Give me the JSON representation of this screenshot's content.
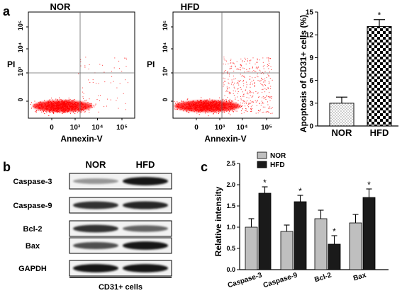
{
  "panels": {
    "a": "a",
    "b": "b",
    "c": "c"
  },
  "flow": {
    "left_title": "NOR",
    "right_title": "HFD",
    "ylabel": "PI",
    "xlabel": "Annexin-V",
    "y_ticks": [
      "10⁵",
      "10⁴",
      "10³",
      "0"
    ],
    "x_ticks": [
      "0",
      "10³",
      "10⁴",
      "10⁵"
    ]
  },
  "blot": {
    "groups": [
      "NOR",
      "HFD"
    ],
    "rows": [
      "Caspase-3",
      "Caspase-9",
      "Bcl-2",
      "Bax",
      "GAPDH"
    ],
    "intensity": [
      [
        0.3,
        0.95
      ],
      [
        0.8,
        0.85
      ],
      [
        0.8,
        0.55
      ],
      [
        0.65,
        0.95
      ],
      [
        0.95,
        0.95
      ]
    ],
    "caption": "CD31+ cells"
  },
  "chart_data": [
    {
      "type": "bar",
      "ylabel": "Apoptosis of CD31+ cells (%)",
      "categories": [
        "NOR",
        "HFD"
      ],
      "values": [
        3.0,
        13.1
      ],
      "errors": [
        0.8,
        0.9
      ],
      "ylim": [
        0,
        15
      ],
      "yticks": [
        "0",
        "3",
        "6",
        "9",
        "12",
        "15"
      ],
      "significance": [
        "",
        "*"
      ],
      "fills": [
        "dotted",
        "checkered"
      ]
    },
    {
      "type": "bar",
      "ylabel": "Relative intensity",
      "categories": [
        "Caspase-3",
        "Caspase-9",
        "Bcl-2",
        "Bax"
      ],
      "series": [
        {
          "name": "NOR",
          "color": "#bfbfbf",
          "values": [
            1.0,
            0.9,
            1.2,
            1.1
          ],
          "errors": [
            0.2,
            0.15,
            0.2,
            0.2
          ]
        },
        {
          "name": "HFD",
          "color": "#1a1a1a",
          "values": [
            1.8,
            1.6,
            0.6,
            1.7
          ],
          "errors": [
            0.15,
            0.15,
            0.2,
            0.2
          ]
        }
      ],
      "significance": [
        "*",
        "*",
        "*",
        "*"
      ],
      "ylim": [
        0,
        2.5
      ],
      "yticks": [
        "0.0",
        "0.5",
        "1.0",
        "1.5",
        "2.0",
        "2.5"
      ]
    }
  ]
}
